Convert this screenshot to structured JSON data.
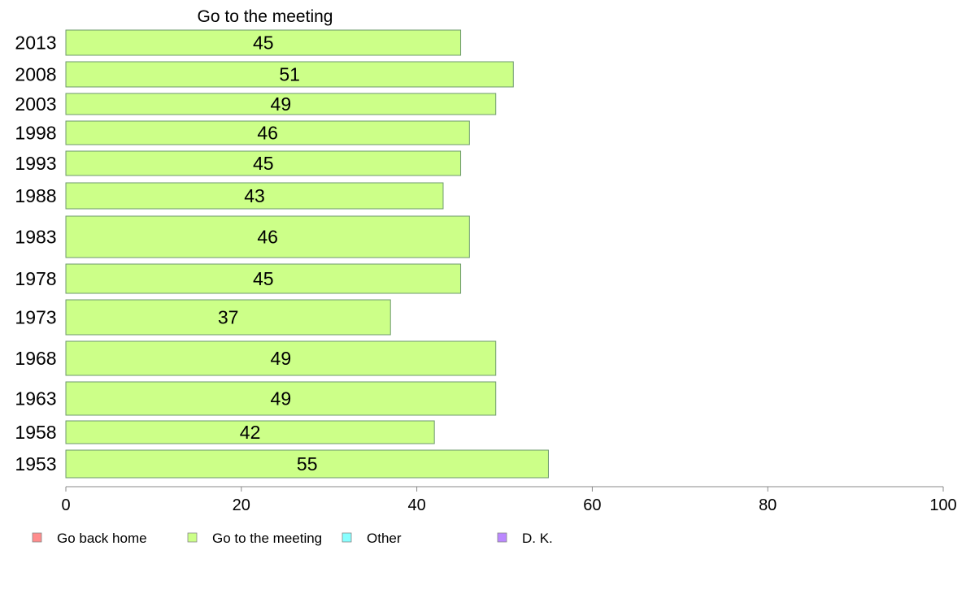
{
  "chart_data": {
    "type": "bar",
    "orientation": "horizontal",
    "title": "Go to the meeting",
    "categories": [
      "2013",
      "2008",
      "2003",
      "1998",
      "1993",
      "1988",
      "1983",
      "1978",
      "1973",
      "1968",
      "1963",
      "1958",
      "1953"
    ],
    "series": [
      {
        "name": "Go to the meeting",
        "values": [
          45,
          51,
          49,
          46,
          45,
          43,
          46,
          45,
          37,
          49,
          49,
          42,
          55
        ]
      }
    ],
    "xlim": [
      0,
      100
    ],
    "xticks": [
      0,
      20,
      40,
      60,
      80,
      100
    ],
    "grid": false,
    "legend": {
      "placement": "bottom",
      "entries": [
        {
          "label": "Go back home",
          "color": "#ff8c8c"
        },
        {
          "label": "Go to the meeting",
          "color": "#ccff88"
        },
        {
          "label": "Other",
          "color": "#88ffff"
        },
        {
          "label": "D. K.",
          "color": "#bb88ff"
        }
      ]
    },
    "colors": {
      "bar": "#ccff88",
      "bar_stroke": "#6e9a6e",
      "axis": "#888888"
    }
  }
}
